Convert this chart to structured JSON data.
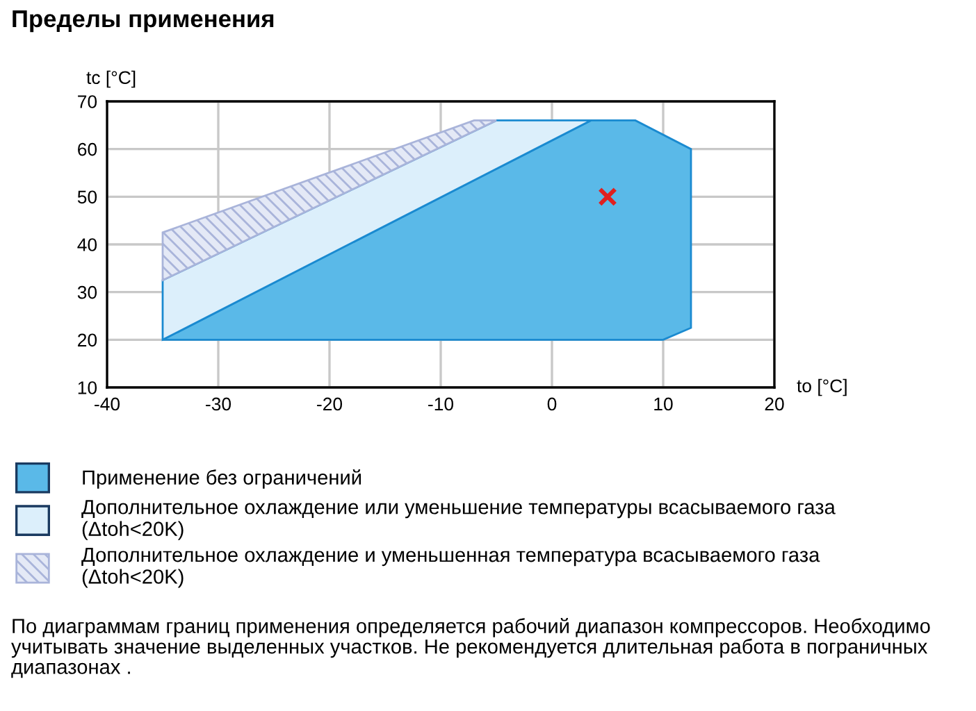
{
  "chart_data": {
    "type": "area",
    "title": "Пределы применения",
    "xlabel": "to [°C]",
    "ylabel": "tc [°C]",
    "xlim": [
      -40,
      20
    ],
    "xticks": [
      -40,
      -30,
      -20,
      -10,
      0,
      10,
      20
    ],
    "ylim": [
      10,
      70
    ],
    "yticks": [
      10,
      20,
      30,
      40,
      50,
      60,
      70
    ],
    "grid": true,
    "legend": "bottom",
    "series": [
      {
        "name": "Применение без ограничений",
        "color": "#5ab9e8",
        "x": [
          -35,
          3.5,
          7.5,
          12.5,
          12.5,
          10,
          -35
        ],
        "values": [
          20,
          66,
          66,
          60,
          22.5,
          20,
          20
        ]
      },
      {
        "name": "Дополнительное охлаждение или уменьшение температуры всасываемого газа\n(Δtoh<20K)",
        "color": "#dceffb",
        "x": [
          -35,
          -35,
          -5,
          3.5,
          -35
        ],
        "values": [
          20,
          32.5,
          66,
          66,
          20
        ]
      },
      {
        "name": "Дополнительное охлаждение и уменьшенная температура всасываемого газа\n(Δtoh<20K)",
        "color": "#a9b4da",
        "x": [
          -35,
          -35,
          -7,
          -5,
          -35
        ],
        "values": [
          32.5,
          42.5,
          66,
          66,
          32.5
        ]
      },
      {
        "type": "scatter",
        "color": "#e02020",
        "marker": "cross",
        "x": [
          5
        ],
        "values": [
          50
        ]
      }
    ],
    "annotations": [
      "По диаграммам границ применения определяется рабочий диапазон компрессоров. Необходимо учитывать значение выделенных участков. Не рекомендуется длительная работа в пограничных диапазонах ."
    ]
  }
}
